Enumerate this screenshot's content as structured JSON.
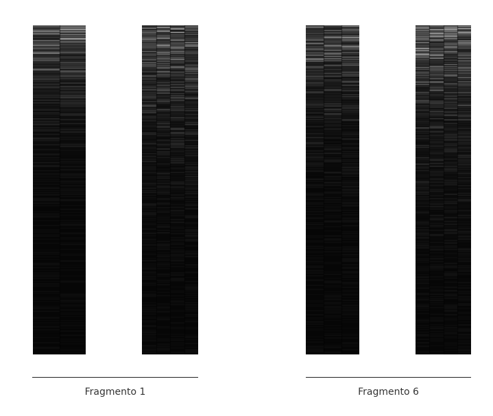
{
  "groups": [
    {
      "label": "Fragmento 1"
    },
    {
      "label": "Fragmento 6"
    }
  ],
  "colors": {
    "background": "#ffffff",
    "strip": "#0b0b0b",
    "rule": "#222222",
    "caption": "#333333"
  }
}
